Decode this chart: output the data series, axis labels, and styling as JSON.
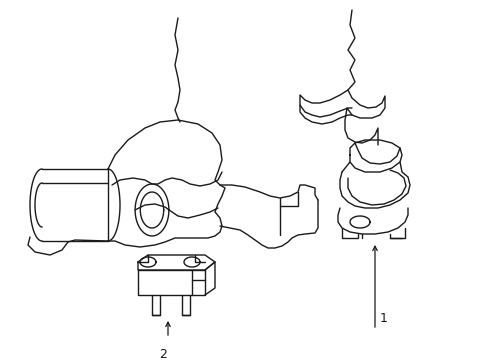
{
  "bg_color": "#ffffff",
  "line_color": "#1a1a1a",
  "line_width": 1.0,
  "label1_text": "1",
  "label2_text": "2",
  "font_size": 9,
  "figsize": [
    4.89,
    3.6
  ],
  "dpi": 100
}
